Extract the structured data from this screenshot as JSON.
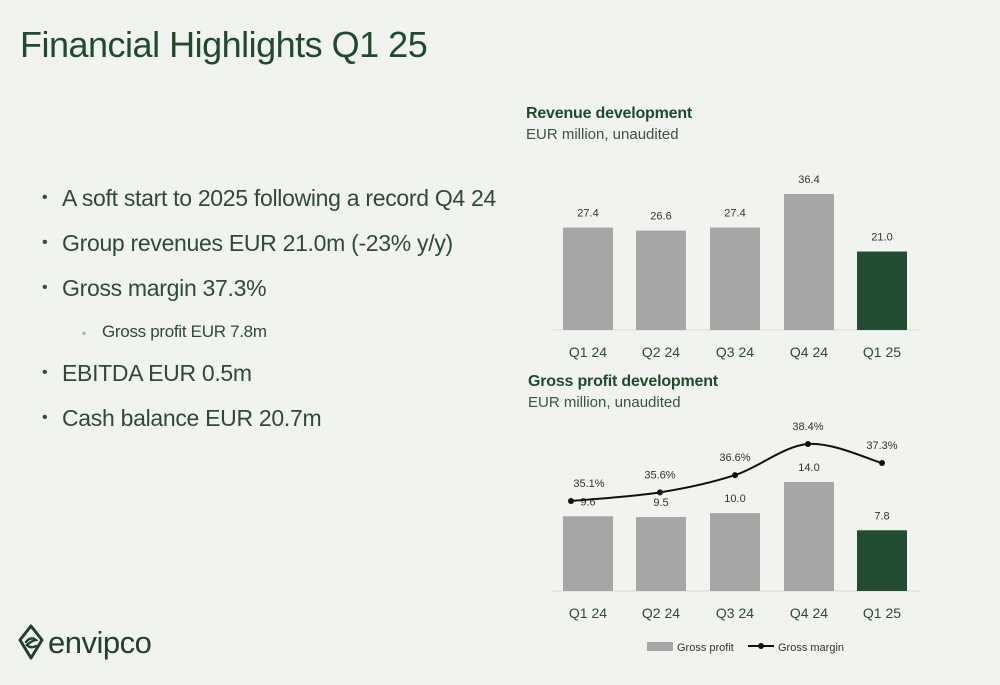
{
  "page": {
    "title": "Financial Highlights Q1 25"
  },
  "bullets": [
    {
      "text": "A soft start to 2025 following a record Q4 24",
      "level": 1
    },
    {
      "text": "Group revenues EUR 21.0m (-23% y/y)",
      "level": 1
    },
    {
      "text": "Gross margin 37.3%",
      "level": 1
    },
    {
      "text": "Gross profit EUR 7.8m",
      "level": 2
    },
    {
      "text": "EBITDA EUR 0.5m",
      "level": 1
    },
    {
      "text": "Cash balance EUR 20.7m",
      "level": 1
    }
  ],
  "logo": {
    "text": "envipco"
  },
  "colors": {
    "gray_bar": "#a6a6a6",
    "highlight_bar": "#234d33",
    "line": "#111111",
    "text": "#2f4a36"
  },
  "chart_data": [
    {
      "type": "bar",
      "title": "Revenue development",
      "subtitle": "EUR million, unaudited",
      "categories": [
        "Q1 24",
        "Q2 24",
        "Q3 24",
        "Q4 24",
        "Q1 25"
      ],
      "values": [
        27.4,
        26.6,
        27.4,
        36.4,
        21.0
      ],
      "value_labels": [
        "27.4",
        "26.6",
        "27.4",
        "36.4",
        "21.0"
      ],
      "highlight_index": 4,
      "ylim": [
        0,
        40
      ]
    },
    {
      "type": "bar",
      "title": "Gross profit development",
      "subtitle": "EUR million,  unaudited",
      "categories": [
        "Q1 24",
        "Q2 24",
        "Q3 24",
        "Q4 24",
        "Q1 25"
      ],
      "series": [
        {
          "name": "Gross profit",
          "type": "bar",
          "values": [
            9.6,
            9.5,
            10.0,
            14.0,
            7.8
          ],
          "labels": [
            "9.6",
            "9.5",
            "10.0",
            "14.0",
            "7.8"
          ]
        },
        {
          "name": "Gross margin",
          "type": "line",
          "values": [
            35.1,
            35.6,
            36.6,
            38.4,
            37.3
          ],
          "labels": [
            "35.1%",
            "35.6%",
            "36.6%",
            "38.4%",
            "37.3%"
          ]
        }
      ],
      "highlight_index": 4,
      "legend": "bottom",
      "ylim": [
        0,
        16
      ]
    }
  ]
}
